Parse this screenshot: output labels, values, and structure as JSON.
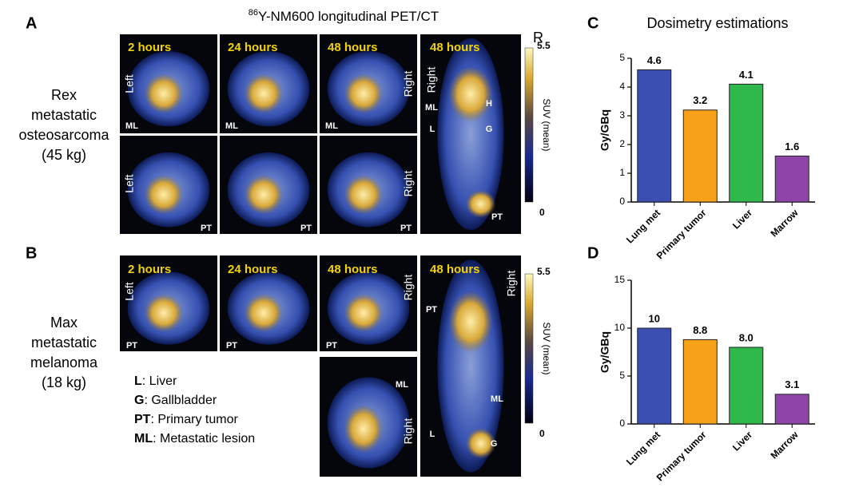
{
  "figure_title": {
    "sup": "86",
    "text": "Y-NM600 longitudinal PET/CT"
  },
  "panel_a": {
    "label": "A",
    "subject": [
      "Rex",
      "metastatic",
      "osteosarcoma",
      "(45 kg)"
    ],
    "times": [
      "2 hours",
      "24 hours",
      "48 hours",
      "48 hours"
    ],
    "corner": "R",
    "colorbar": {
      "max": "5.5",
      "min": "0",
      "label": "SUV (mean)"
    },
    "annotations": [
      "Left",
      "ML",
      "ML",
      "ML",
      "Right",
      "Right",
      "ML",
      "H",
      "L",
      "G",
      "PT",
      "Left",
      "PT",
      "PT",
      "Right",
      "PT"
    ]
  },
  "panel_b": {
    "label": "B",
    "subject": [
      "Max",
      "metastatic",
      "melanoma",
      "(18 kg)"
    ],
    "times": [
      "2 hours",
      "24 hours",
      "48 hours",
      "48 hours"
    ],
    "colorbar": {
      "max": "5.5",
      "min": "0",
      "label": "SUV (mean)"
    },
    "annotations": [
      "Left",
      "PT",
      "PT",
      "PT",
      "Right",
      "Right",
      "PT",
      "ML",
      "L",
      "G",
      "ML",
      "Right"
    ]
  },
  "legend": [
    {
      "key": "L",
      "text": ": Liver"
    },
    {
      "key": "G",
      "text": ": Gallbladder"
    },
    {
      "key": "PT",
      "text": ": Primary tumor"
    },
    {
      "key": "ML",
      "text": ": Metastatic lesion"
    }
  ],
  "chart_data": [
    {
      "type": "bar",
      "label": "C",
      "title": "Dosimetry estimations",
      "y_label": "Gy/GBq",
      "categories": [
        "Lung met",
        "Primary tumor",
        "Liver",
        "Marrow"
      ],
      "values": [
        4.6,
        3.2,
        4.1,
        1.6
      ],
      "colors": [
        "#3b4fb3",
        "#f7a11a",
        "#2fb84b",
        "#8e44a8"
      ],
      "ylim": [
        0,
        5
      ],
      "yticks": [
        0,
        1,
        2,
        3,
        4,
        5
      ]
    },
    {
      "type": "bar",
      "label": "D",
      "y_label": "Gy/GBq",
      "categories": [
        "Lung met",
        "Primary tumor",
        "Liver",
        "Marrow"
      ],
      "values": [
        10,
        8.8,
        8.0,
        3.1
      ],
      "value_labels": [
        "10",
        "8.8",
        "8.0",
        "3.1"
      ],
      "colors": [
        "#3b4fb3",
        "#f7a11a",
        "#2fb84b",
        "#8e44a8"
      ],
      "ylim": [
        0,
        15
      ],
      "yticks": [
        0,
        5,
        10,
        15
      ]
    }
  ]
}
